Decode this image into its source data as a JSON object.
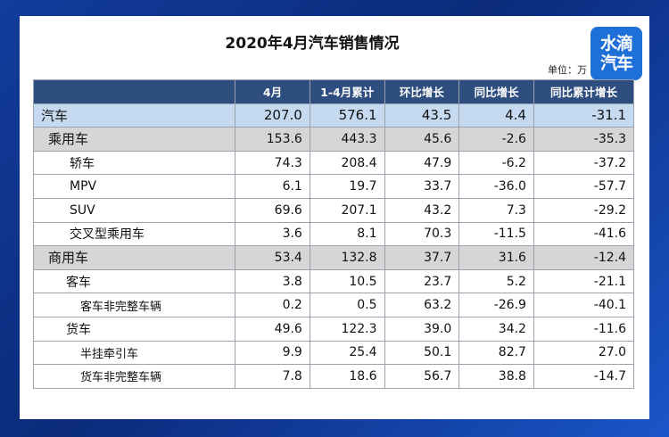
{
  "title": "2020年4月汽车销售情况",
  "unit": "单位：万",
  "logo": {
    "line1": "水滴",
    "line2": "汽车"
  },
  "columns": [
    "",
    "4月",
    "1-4月累计",
    "环比增长",
    "同比增长",
    "同比累计增长"
  ],
  "rows": [
    {
      "label": "汽车",
      "level": "lv0",
      "v": [
        "207.0",
        "576.1",
        "43.5",
        "4.4",
        "-31.1"
      ]
    },
    {
      "label": "乘用车",
      "level": "lv1",
      "v": [
        "153.6",
        "443.3",
        "45.6",
        "-2.6",
        "-35.3"
      ]
    },
    {
      "label": "轿车",
      "level": "lv2",
      "v": [
        "74.3",
        "208.4",
        "47.9",
        "-6.2",
        "-37.2"
      ]
    },
    {
      "label": "MPV",
      "level": "lv2",
      "v": [
        "6.1",
        "19.7",
        "33.7",
        "-36.0",
        "-57.7"
      ]
    },
    {
      "label": "SUV",
      "level": "lv2",
      "v": [
        "69.6",
        "207.1",
        "43.2",
        "7.3",
        "-29.2"
      ]
    },
    {
      "label": "交叉型乘用车",
      "level": "lv2",
      "v": [
        "3.6",
        "8.1",
        "70.3",
        "-11.5",
        "-41.6"
      ]
    },
    {
      "label": "商用车",
      "level": "lv1",
      "v": [
        "53.4",
        "132.8",
        "37.7",
        "31.6",
        "-12.4"
      ]
    },
    {
      "label": "客车",
      "level": "lv1b",
      "v": [
        "3.8",
        "10.5",
        "23.7",
        "5.2",
        "-21.1"
      ]
    },
    {
      "label": "客车非完整车辆",
      "level": "lv3",
      "v": [
        "0.2",
        "0.5",
        "63.2",
        "-26.9",
        "-40.1"
      ]
    },
    {
      "label": "货车",
      "level": "lv1b",
      "v": [
        "49.6",
        "122.3",
        "39.0",
        "34.2",
        "-11.6"
      ]
    },
    {
      "label": "半挂牵引车",
      "level": "lv3",
      "v": [
        "9.9",
        "25.4",
        "50.1",
        "82.7",
        "27.0"
      ]
    },
    {
      "label": "货车非完整车辆",
      "level": "lv3",
      "v": [
        "7.8",
        "18.6",
        "56.7",
        "38.8",
        "-14.7"
      ]
    }
  ]
}
